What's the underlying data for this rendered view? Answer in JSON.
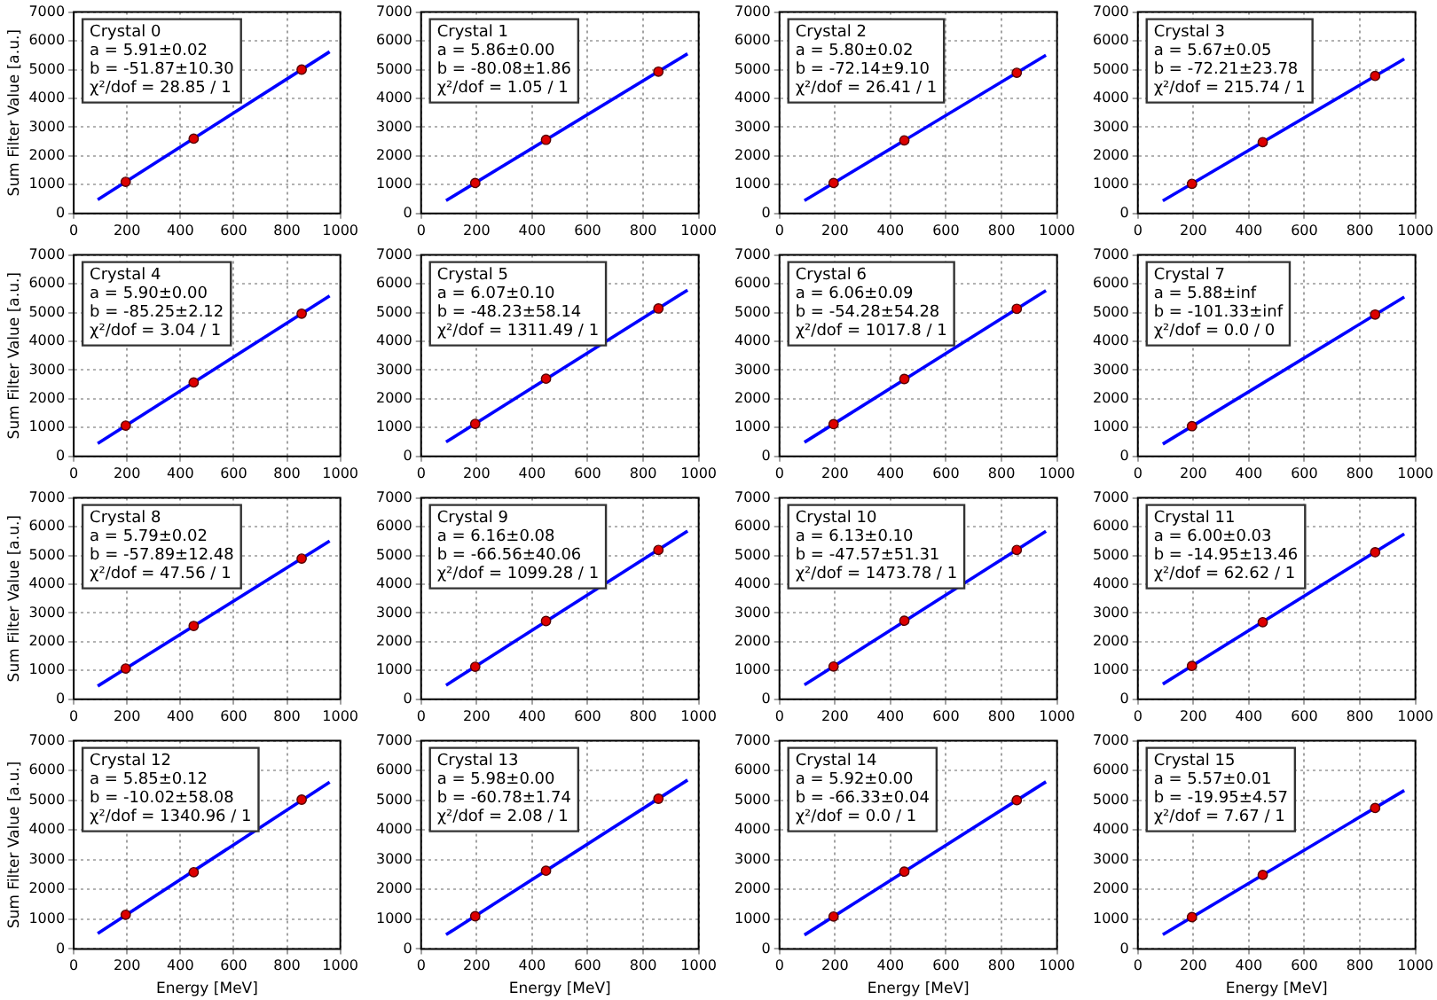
{
  "chart_data": [
    {
      "type": "scatter",
      "ylabel": "Sum Filter Value [a.u.]",
      "xlim": [
        0,
        1000
      ],
      "ylim": [
        0,
        7000
      ],
      "xticks": [
        0,
        200,
        400,
        600,
        800,
        1000
      ],
      "yticks": [
        0,
        1000,
        2000,
        3000,
        4000,
        5000,
        6000,
        7000
      ],
      "grid": true,
      "annotations": [
        "Crystal 0",
        "a = 5.91±0.02",
        "b = -51.87±10.30",
        "χ²/dof = 28.85 / 1"
      ],
      "series": [
        {
          "type": "scatter",
          "color": "#dd0000",
          "marker": "circle",
          "x": [
            195,
            450,
            855
          ],
          "values": [
            1100,
            2600,
            5000
          ]
        },
        {
          "type": "line",
          "color": "#0000ff",
          "line_style": "solid",
          "x": [
            90,
            960
          ],
          "values": [
            480,
            5620
          ]
        }
      ]
    },
    {
      "type": "scatter",
      "xlim": [
        0,
        1000
      ],
      "ylim": [
        0,
        7000
      ],
      "xticks": [
        0,
        200,
        400,
        600,
        800,
        1000
      ],
      "yticks": [
        0,
        1000,
        2000,
        3000,
        4000,
        5000,
        6000,
        7000
      ],
      "grid": true,
      "annotations": [
        "Crystal 1",
        "a = 5.86±0.00",
        "b = -80.08±1.86",
        "χ²/dof = 1.05 / 1"
      ],
      "series": [
        {
          "type": "scatter",
          "color": "#dd0000",
          "marker": "circle",
          "x": [
            195,
            450,
            855
          ],
          "values": [
            1060,
            2560,
            4930
          ]
        },
        {
          "type": "line",
          "color": "#0000ff",
          "line_style": "solid",
          "x": [
            90,
            960
          ],
          "values": [
            450,
            5550
          ]
        }
      ]
    },
    {
      "type": "scatter",
      "xlim": [
        0,
        1000
      ],
      "ylim": [
        0,
        7000
      ],
      "xticks": [
        0,
        200,
        400,
        600,
        800,
        1000
      ],
      "yticks": [
        0,
        1000,
        2000,
        3000,
        4000,
        5000,
        6000,
        7000
      ],
      "grid": true,
      "annotations": [
        "Crystal 2",
        "a = 5.80±0.02",
        "b = -72.14±9.10",
        "χ²/dof = 26.41 / 1"
      ],
      "series": [
        {
          "type": "scatter",
          "color": "#dd0000",
          "marker": "circle",
          "x": [
            195,
            450,
            855
          ],
          "values": [
            1060,
            2540,
            4890
          ]
        },
        {
          "type": "line",
          "color": "#0000ff",
          "line_style": "solid",
          "x": [
            90,
            960
          ],
          "values": [
            450,
            5500
          ]
        }
      ]
    },
    {
      "type": "scatter",
      "xlim": [
        0,
        1000
      ],
      "ylim": [
        0,
        7000
      ],
      "xticks": [
        0,
        200,
        400,
        600,
        800,
        1000
      ],
      "yticks": [
        0,
        1000,
        2000,
        3000,
        4000,
        5000,
        6000,
        7000
      ],
      "grid": true,
      "annotations": [
        "Crystal 3",
        "a = 5.67±0.05",
        "b = -72.21±23.78",
        "χ²/dof = 215.74 / 1"
      ],
      "series": [
        {
          "type": "scatter",
          "color": "#dd0000",
          "marker": "circle",
          "x": [
            195,
            450,
            855
          ],
          "values": [
            1030,
            2480,
            4780
          ]
        },
        {
          "type": "line",
          "color": "#0000ff",
          "line_style": "solid",
          "x": [
            90,
            960
          ],
          "values": [
            440,
            5370
          ]
        }
      ]
    },
    {
      "type": "scatter",
      "ylabel": "Sum Filter Value [a.u.]",
      "xlim": [
        0,
        1000
      ],
      "ylim": [
        0,
        7000
      ],
      "xticks": [
        0,
        200,
        400,
        600,
        800,
        1000
      ],
      "yticks": [
        0,
        1000,
        2000,
        3000,
        4000,
        5000,
        6000,
        7000
      ],
      "grid": true,
      "annotations": [
        "Crystal 4",
        "a = 5.90±0.00",
        "b = -85.25±2.12",
        "χ²/dof = 3.04 / 1"
      ],
      "series": [
        {
          "type": "scatter",
          "color": "#dd0000",
          "marker": "circle",
          "x": [
            195,
            450,
            855
          ],
          "values": [
            1070,
            2570,
            4960
          ]
        },
        {
          "type": "line",
          "color": "#0000ff",
          "line_style": "solid",
          "x": [
            90,
            960
          ],
          "values": [
            450,
            5580
          ]
        }
      ]
    },
    {
      "type": "scatter",
      "xlim": [
        0,
        1000
      ],
      "ylim": [
        0,
        7000
      ],
      "xticks": [
        0,
        200,
        400,
        600,
        800,
        1000
      ],
      "yticks": [
        0,
        1000,
        2000,
        3000,
        4000,
        5000,
        6000,
        7000
      ],
      "grid": true,
      "annotations": [
        "Crystal 5",
        "a = 6.07±0.10",
        "b = -48.23±58.14",
        "χ²/dof = 1311.49 / 1"
      ],
      "series": [
        {
          "type": "scatter",
          "color": "#dd0000",
          "marker": "circle",
          "x": [
            195,
            450,
            855
          ],
          "values": [
            1130,
            2700,
            5140
          ]
        },
        {
          "type": "line",
          "color": "#0000ff",
          "line_style": "solid",
          "x": [
            90,
            960
          ],
          "values": [
            500,
            5780
          ]
        }
      ]
    },
    {
      "type": "scatter",
      "xlim": [
        0,
        1000
      ],
      "ylim": [
        0,
        7000
      ],
      "xticks": [
        0,
        200,
        400,
        600,
        800,
        1000
      ],
      "yticks": [
        0,
        1000,
        2000,
        3000,
        4000,
        5000,
        6000,
        7000
      ],
      "grid": true,
      "annotations": [
        "Crystal 6",
        "a = 6.06±0.09",
        "b = -54.28±54.28",
        "χ²/dof = 1017.8 / 1"
      ],
      "series": [
        {
          "type": "scatter",
          "color": "#dd0000",
          "marker": "circle",
          "x": [
            195,
            450,
            855
          ],
          "values": [
            1120,
            2690,
            5130
          ]
        },
        {
          "type": "line",
          "color": "#0000ff",
          "line_style": "solid",
          "x": [
            90,
            960
          ],
          "values": [
            490,
            5760
          ]
        }
      ]
    },
    {
      "type": "scatter",
      "xlim": [
        0,
        1000
      ],
      "ylim": [
        0,
        7000
      ],
      "xticks": [
        0,
        200,
        400,
        600,
        800,
        1000
      ],
      "yticks": [
        0,
        1000,
        2000,
        3000,
        4000,
        5000,
        6000,
        7000
      ],
      "grid": true,
      "annotations": [
        "Crystal 7",
        "a = 5.88±inf",
        "b = -101.33±inf",
        "χ²/dof = 0.0 / 0"
      ],
      "series": [
        {
          "type": "scatter",
          "color": "#dd0000",
          "marker": "circle",
          "x": [
            195,
            855
          ],
          "values": [
            1050,
            4930
          ]
        },
        {
          "type": "line",
          "color": "#0000ff",
          "line_style": "solid",
          "x": [
            90,
            960
          ],
          "values": [
            430,
            5540
          ]
        }
      ]
    },
    {
      "type": "scatter",
      "ylabel": "Sum Filter Value [a.u.]",
      "xlim": [
        0,
        1000
      ],
      "ylim": [
        0,
        7000
      ],
      "xticks": [
        0,
        200,
        400,
        600,
        800,
        1000
      ],
      "yticks": [
        0,
        1000,
        2000,
        3000,
        4000,
        5000,
        6000,
        7000
      ],
      "grid": true,
      "annotations": [
        "Crystal 8",
        "a = 5.79±0.02",
        "b = -57.89±12.48",
        "χ²/dof = 47.56 / 1"
      ],
      "series": [
        {
          "type": "scatter",
          "color": "#dd0000",
          "marker": "circle",
          "x": [
            195,
            450,
            855
          ],
          "values": [
            1070,
            2550,
            4890
          ]
        },
        {
          "type": "line",
          "color": "#0000ff",
          "line_style": "solid",
          "x": [
            90,
            960
          ],
          "values": [
            460,
            5500
          ]
        }
      ]
    },
    {
      "type": "scatter",
      "xlim": [
        0,
        1000
      ],
      "ylim": [
        0,
        7000
      ],
      "xticks": [
        0,
        200,
        400,
        600,
        800,
        1000
      ],
      "yticks": [
        0,
        1000,
        2000,
        3000,
        4000,
        5000,
        6000,
        7000
      ],
      "grid": true,
      "annotations": [
        "Crystal 9",
        "a = 6.16±0.08",
        "b = -66.56±40.06",
        "χ²/dof = 1099.28 / 1"
      ],
      "series": [
        {
          "type": "scatter",
          "color": "#dd0000",
          "marker": "circle",
          "x": [
            195,
            450,
            855
          ],
          "values": [
            1130,
            2720,
            5190
          ]
        },
        {
          "type": "line",
          "color": "#0000ff",
          "line_style": "solid",
          "x": [
            90,
            960
          ],
          "values": [
            490,
            5850
          ]
        }
      ]
    },
    {
      "type": "scatter",
      "xlim": [
        0,
        1000
      ],
      "ylim": [
        0,
        7000
      ],
      "xticks": [
        0,
        200,
        400,
        600,
        800,
        1000
      ],
      "yticks": [
        0,
        1000,
        2000,
        3000,
        4000,
        5000,
        6000,
        7000
      ],
      "grid": true,
      "annotations": [
        "Crystal 10",
        "a = 6.13±0.10",
        "b = -47.57±51.31",
        "χ²/dof = 1473.78 / 1"
      ],
      "series": [
        {
          "type": "scatter",
          "color": "#dd0000",
          "marker": "circle",
          "x": [
            195,
            450,
            855
          ],
          "values": [
            1140,
            2730,
            5190
          ]
        },
        {
          "type": "line",
          "color": "#0000ff",
          "line_style": "solid",
          "x": [
            90,
            960
          ],
          "values": [
            500,
            5840
          ]
        }
      ]
    },
    {
      "type": "scatter",
      "xlim": [
        0,
        1000
      ],
      "ylim": [
        0,
        7000
      ],
      "xticks": [
        0,
        200,
        400,
        600,
        800,
        1000
      ],
      "yticks": [
        0,
        1000,
        2000,
        3000,
        4000,
        5000,
        6000,
        7000
      ],
      "grid": true,
      "annotations": [
        "Crystal 11",
        "a = 6.00±0.03",
        "b = -14.95±13.46",
        "χ²/dof = 62.62 / 1"
      ],
      "series": [
        {
          "type": "scatter",
          "color": "#dd0000",
          "marker": "circle",
          "x": [
            195,
            450,
            855
          ],
          "values": [
            1160,
            2680,
            5110
          ]
        },
        {
          "type": "line",
          "color": "#0000ff",
          "line_style": "solid",
          "x": [
            90,
            960
          ],
          "values": [
            530,
            5750
          ]
        }
      ]
    },
    {
      "type": "scatter",
      "xlabel": "Energy [MeV]",
      "ylabel": "Sum Filter Value [a.u.]",
      "xlim": [
        0,
        1000
      ],
      "ylim": [
        0,
        7000
      ],
      "xticks": [
        0,
        200,
        400,
        600,
        800,
        1000
      ],
      "yticks": [
        0,
        1000,
        2000,
        3000,
        4000,
        5000,
        6000,
        7000
      ],
      "grid": true,
      "annotations": [
        "Crystal 12",
        "a = 5.85±0.12",
        "b = -10.02±58.08",
        "χ²/dof = 1340.96 / 1"
      ],
      "series": [
        {
          "type": "scatter",
          "color": "#dd0000",
          "marker": "circle",
          "x": [
            195,
            450,
            855
          ],
          "values": [
            1150,
            2580,
            5020
          ]
        },
        {
          "type": "line",
          "color": "#0000ff",
          "line_style": "solid",
          "x": [
            90,
            960
          ],
          "values": [
            520,
            5610
          ]
        }
      ]
    },
    {
      "type": "scatter",
      "xlabel": "Energy [MeV]",
      "xlim": [
        0,
        1000
      ],
      "ylim": [
        0,
        7000
      ],
      "xticks": [
        0,
        200,
        400,
        600,
        800,
        1000
      ],
      "yticks": [
        0,
        1000,
        2000,
        3000,
        4000,
        5000,
        6000,
        7000
      ],
      "grid": true,
      "annotations": [
        "Crystal 13",
        "a = 5.98±0.00",
        "b = -60.78±1.74",
        "χ²/dof = 2.08 / 1"
      ],
      "series": [
        {
          "type": "scatter",
          "color": "#dd0000",
          "marker": "circle",
          "x": [
            195,
            450,
            855
          ],
          "values": [
            1100,
            2630,
            5050
          ]
        },
        {
          "type": "line",
          "color": "#0000ff",
          "line_style": "solid",
          "x": [
            90,
            960
          ],
          "values": [
            480,
            5680
          ]
        }
      ]
    },
    {
      "type": "scatter",
      "xlabel": "Energy [MeV]",
      "xlim": [
        0,
        1000
      ],
      "ylim": [
        0,
        7000
      ],
      "xticks": [
        0,
        200,
        400,
        600,
        800,
        1000
      ],
      "yticks": [
        0,
        1000,
        2000,
        3000,
        4000,
        5000,
        6000,
        7000
      ],
      "grid": true,
      "annotations": [
        "Crystal 14",
        "a = 5.92±0.00",
        "b = -66.33±0.04",
        "χ²/dof = 0.0 / 1"
      ],
      "series": [
        {
          "type": "scatter",
          "color": "#dd0000",
          "marker": "circle",
          "x": [
            195,
            450,
            855
          ],
          "values": [
            1090,
            2600,
            5000
          ]
        },
        {
          "type": "line",
          "color": "#0000ff",
          "line_style": "solid",
          "x": [
            90,
            960
          ],
          "values": [
            470,
            5620
          ]
        }
      ]
    },
    {
      "type": "scatter",
      "xlabel": "Energy [MeV]",
      "xlim": [
        0,
        1000
      ],
      "ylim": [
        0,
        7000
      ],
      "xticks": [
        0,
        200,
        400,
        600,
        800,
        1000
      ],
      "yticks": [
        0,
        1000,
        2000,
        3000,
        4000,
        5000,
        6000,
        7000
      ],
      "grid": true,
      "annotations": [
        "Crystal 15",
        "a = 5.57±0.01",
        "b = -19.95±4.57",
        "χ²/dof = 7.67 / 1"
      ],
      "series": [
        {
          "type": "scatter",
          "color": "#dd0000",
          "marker": "circle",
          "x": [
            195,
            450,
            855
          ],
          "values": [
            1070,
            2490,
            4740
          ]
        },
        {
          "type": "line",
          "color": "#0000ff",
          "line_style": "solid",
          "x": [
            90,
            960
          ],
          "values": [
            480,
            5330
          ]
        }
      ]
    }
  ]
}
